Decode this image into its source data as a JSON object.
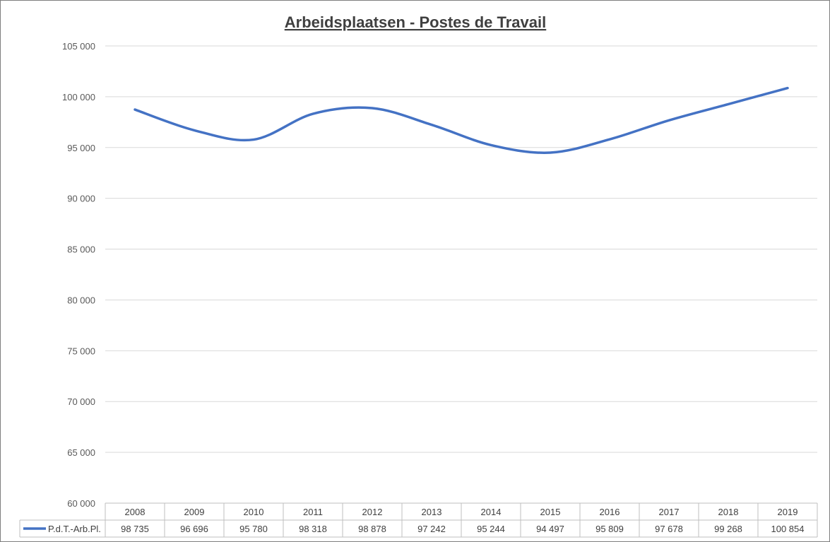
{
  "chart_data": {
    "type": "line",
    "title": "Arbeidsplaatsen - Postes de Travail",
    "xlabel": "",
    "ylabel": "",
    "categories": [
      "2008",
      "2009",
      "2010",
      "2011",
      "2012",
      "2013",
      "2014",
      "2015",
      "2016",
      "2017",
      "2018",
      "2019"
    ],
    "series": [
      {
        "name": "P.d.T.-Arb.Pl.",
        "values": [
          98735,
          96696,
          95780,
          98318,
          98878,
          97242,
          95244,
          94497,
          95809,
          97678,
          99268,
          100854
        ],
        "value_labels": [
          "98 735",
          "96 696",
          "95 780",
          "98 318",
          "98 878",
          "97 242",
          "95 244",
          "94 497",
          "95 809",
          "97 678",
          "99 268",
          "100 854"
        ],
        "color": "#4472c4",
        "smooth": true
      }
    ],
    "ylim": [
      60000,
      105000
    ],
    "yticks": [
      60000,
      65000,
      70000,
      75000,
      80000,
      85000,
      90000,
      95000,
      100000,
      105000
    ],
    "ytick_labels": [
      "60 000",
      "65 000",
      "70 000",
      "75 000",
      "80 000",
      "85 000",
      "90 000",
      "95 000",
      "100 000",
      "105 000"
    ],
    "grid": true,
    "legend": "data-table"
  }
}
